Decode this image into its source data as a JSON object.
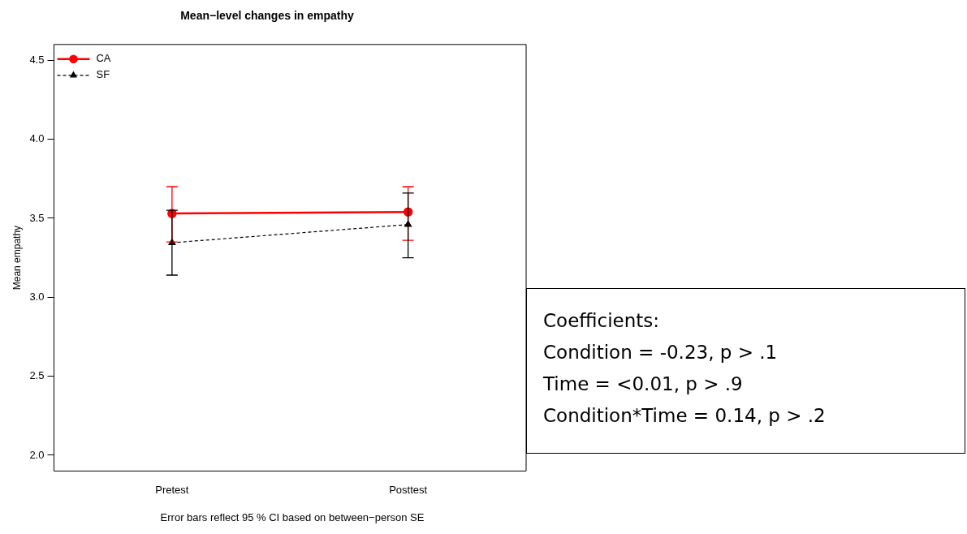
{
  "chart_data": {
    "type": "line",
    "title": "Mean−level changes in empathy",
    "ylabel": "Mean empathy",
    "categories": [
      "Pretest",
      "Posttest"
    ],
    "series": [
      {
        "name": "CA",
        "color": "#ff0000",
        "values": [
          3.53,
          3.54
        ],
        "errors": [
          [
            3.35,
            3.7
          ],
          [
            3.36,
            3.7
          ]
        ],
        "marker": "circle",
        "line_style": "solid"
      },
      {
        "name": "SF",
        "color": "#000000",
        "values": [
          3.345,
          3.46
        ],
        "errors": [
          [
            3.14,
            3.55
          ],
          [
            3.25,
            3.66
          ]
        ],
        "marker": "triangle",
        "line_style": "dashed"
      }
    ],
    "ylim": [
      1.9,
      4.6
    ],
    "yticks": [
      {
        "value": 2,
        "label": "2.0"
      },
      2.5,
      {
        "value": 3,
        "label": "3.0"
      },
      3.5,
      {
        "value": 4,
        "label": "4.0"
      },
      4.5
    ],
    "grid": false,
    "legend": "top left",
    "annotations": [
      "Error bars reflect 95 % CI based on between−person SE",
      "Coefficients:",
      "Condition =  -0.23, p > .1",
      "Time = <0.01, p > .9",
      "Condition*Time = 0.14, p > .2"
    ]
  }
}
